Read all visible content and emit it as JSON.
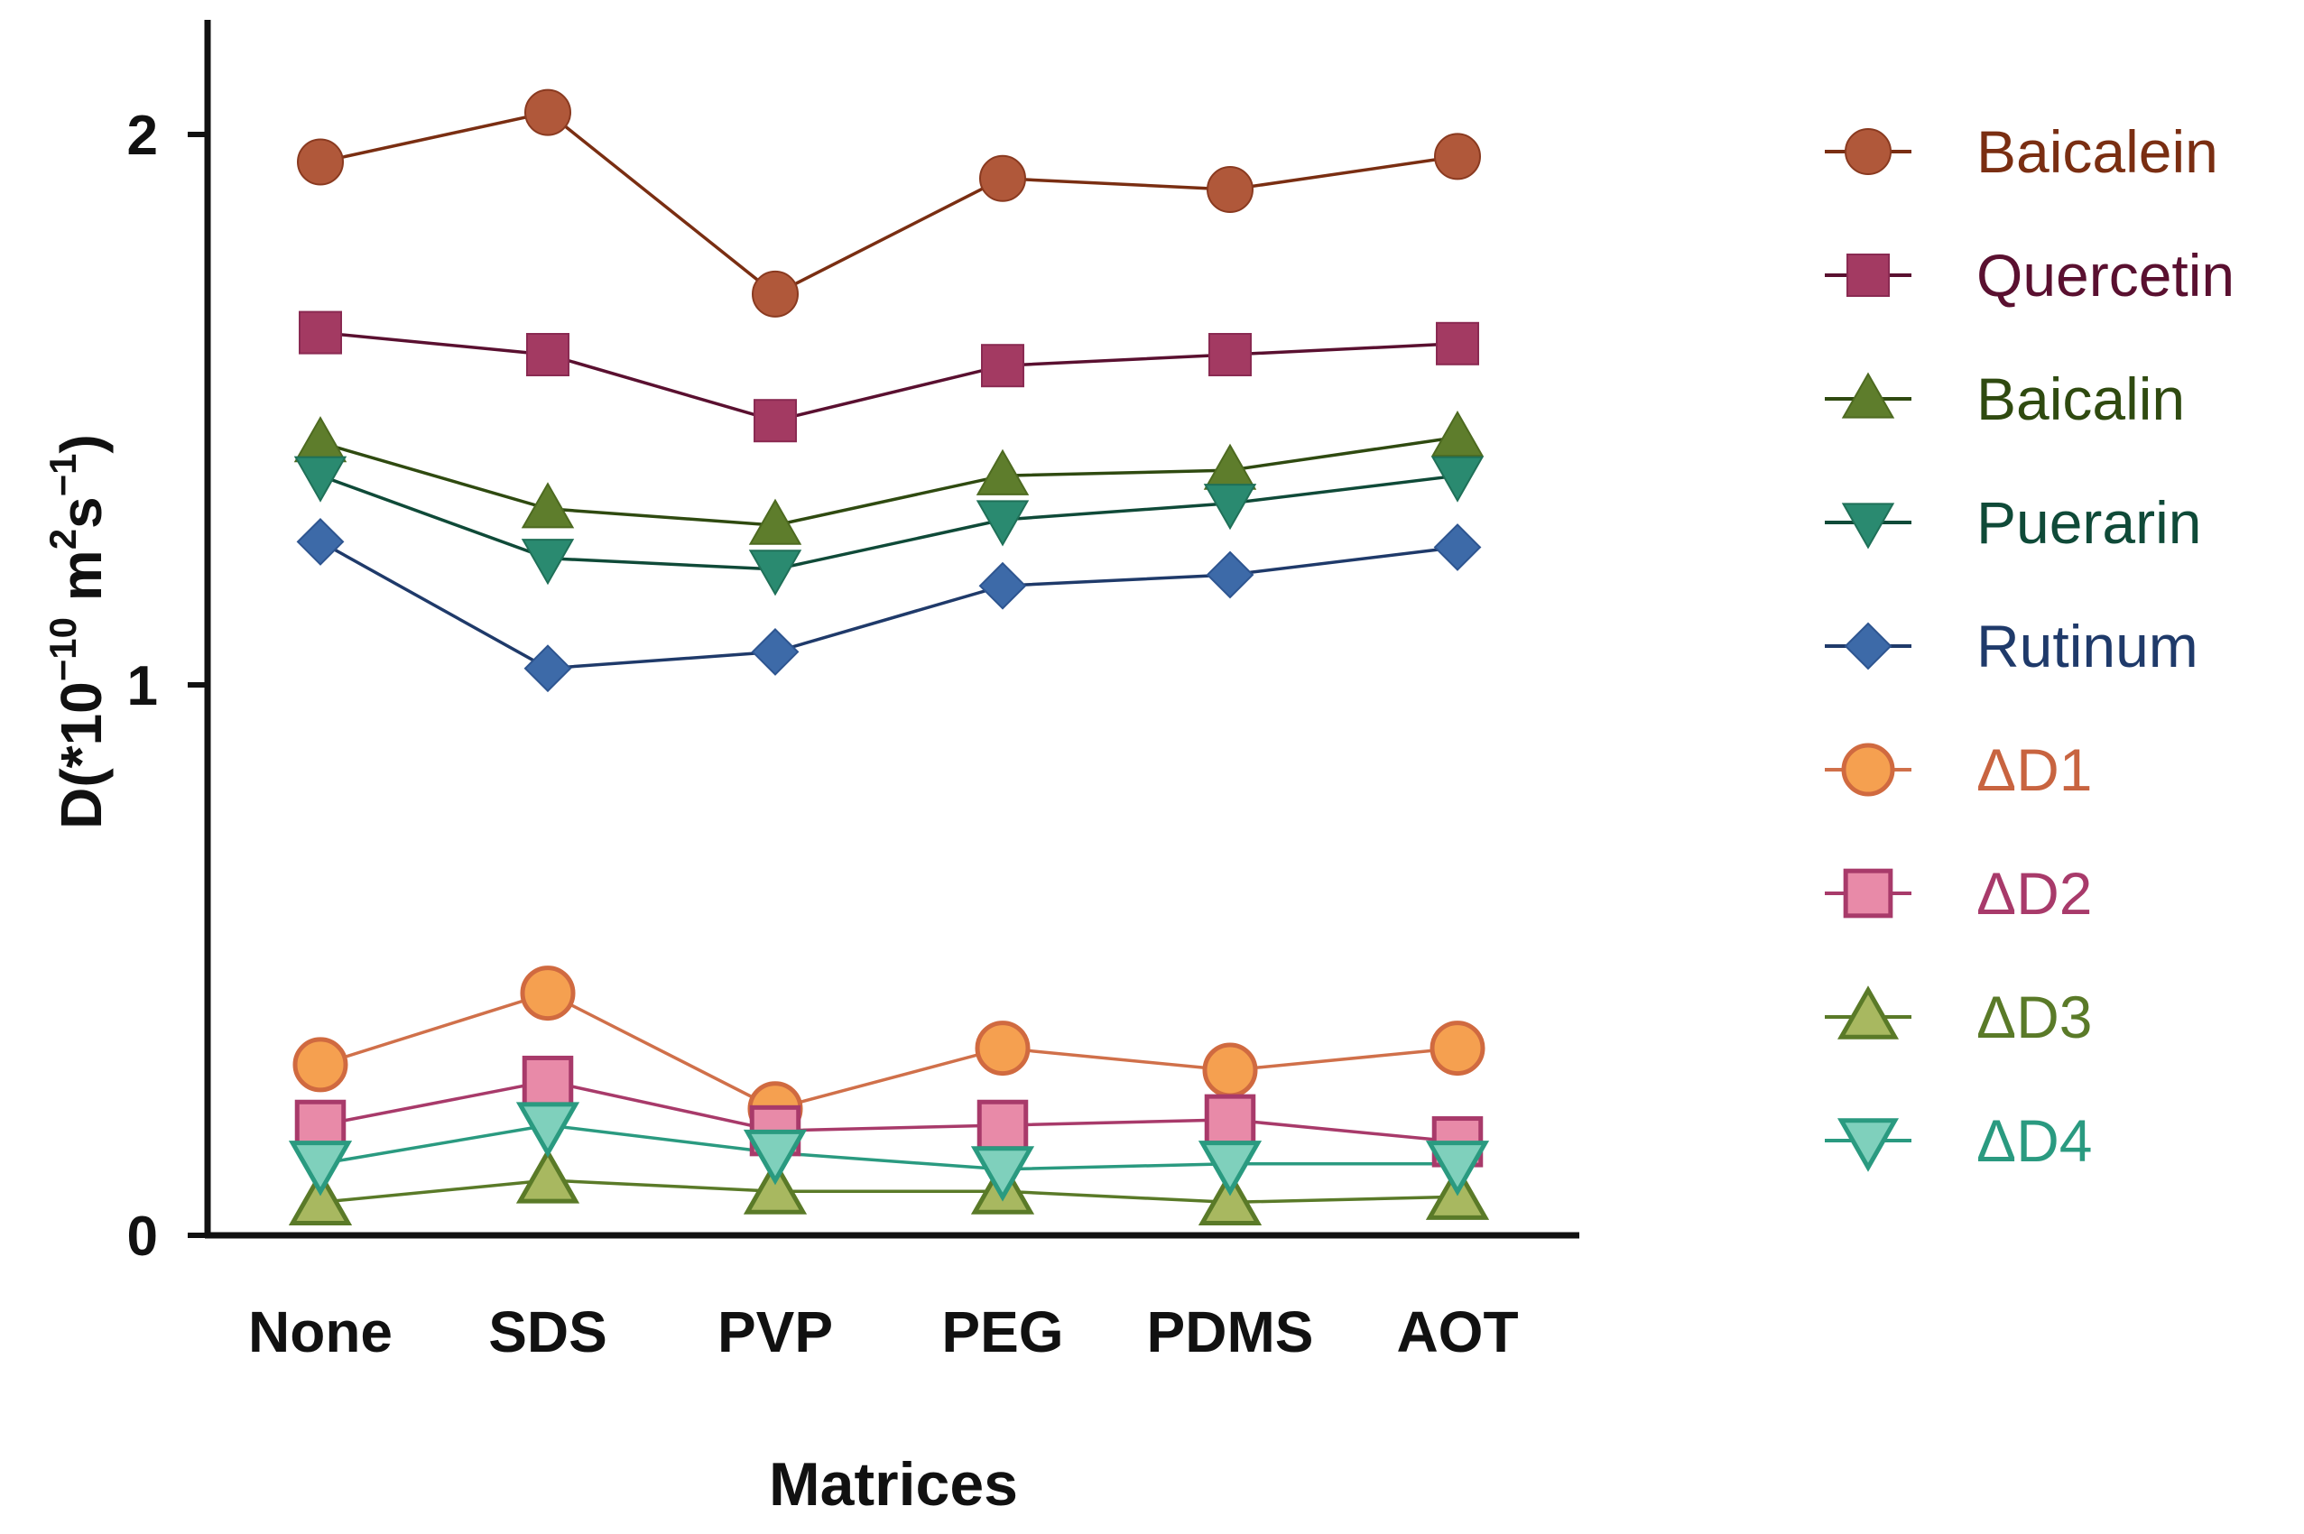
{
  "chart_data": {
    "type": "line",
    "title": "",
    "xlabel": "Matrices",
    "ylabel": {
      "prefix": "D(*10",
      "exp1": "−10",
      "mid": " m",
      "exp2": "2",
      "mid2": "s",
      "exp3": "−1",
      "suffix": ")"
    },
    "categories": [
      "None",
      "SDS",
      "PVP",
      "PEG",
      "PDMS",
      "AOT"
    ],
    "ylim": [
      0,
      2.2
    ],
    "yticks": [
      0,
      1,
      2
    ],
    "ytick_labels": [
      "0",
      "1",
      "2"
    ],
    "legend_position": "right",
    "series": [
      {
        "name": "Baicalein",
        "marker": "circle",
        "filled": true,
        "line_color": "#7a2e12",
        "marker_color": "#b0583a",
        "marker_stroke": "#8a3a20",
        "label_color": "#7a2e12",
        "values": [
          1.95,
          2.04,
          1.71,
          1.92,
          1.9,
          1.96
        ]
      },
      {
        "name": "Quercetin",
        "marker": "square",
        "filled": true,
        "line_color": "#5a1030",
        "marker_color": "#a33a62",
        "marker_stroke": "#8a2a52",
        "label_color": "#5a1030",
        "values": [
          1.64,
          1.6,
          1.48,
          1.58,
          1.6,
          1.62
        ]
      },
      {
        "name": "Baicalin",
        "marker": "triangle-up",
        "filled": true,
        "line_color": "#2f4a10",
        "marker_color": "#5e7d2c",
        "marker_stroke": "#4d6a20",
        "label_color": "#2f4a10",
        "values": [
          1.44,
          1.32,
          1.29,
          1.38,
          1.39,
          1.45
        ]
      },
      {
        "name": "Puerarin",
        "marker": "triangle-down",
        "filled": true,
        "line_color": "#0f4a38",
        "marker_color": "#2a8a70",
        "marker_stroke": "#1f7058",
        "label_color": "#0f4a38",
        "values": [
          1.38,
          1.23,
          1.21,
          1.3,
          1.33,
          1.38
        ]
      },
      {
        "name": "Rutinum",
        "marker": "diamond",
        "filled": true,
        "line_color": "#1f3a6a",
        "marker_color": "#3d6aa8",
        "marker_stroke": "#2e5590",
        "label_color": "#1f3a6a",
        "values": [
          1.26,
          1.03,
          1.06,
          1.18,
          1.2,
          1.25
        ]
      },
      {
        "name": "ΔD1",
        "marker": "circle",
        "filled": true,
        "line_color": "#d0704a",
        "marker_color": "#f5a050",
        "marker_stroke": "#d06a40",
        "label_color": "#c86440",
        "values": [
          0.31,
          0.44,
          0.23,
          0.34,
          0.3,
          0.34
        ]
      },
      {
        "name": "ΔD2",
        "marker": "square",
        "filled": true,
        "line_color": "#a83a6a",
        "marker_color": "#e88aa8",
        "marker_stroke": "#a83a6a",
        "label_color": "#a83a6a",
        "values": [
          0.2,
          0.28,
          0.19,
          0.2,
          0.21,
          0.17
        ]
      },
      {
        "name": "ΔD3",
        "marker": "triangle-up",
        "filled": true,
        "line_color": "#5a7a28",
        "marker_color": "#a8b860",
        "marker_stroke": "#5a7a28",
        "label_color": "#5a7a28",
        "values": [
          0.06,
          0.1,
          0.08,
          0.08,
          0.06,
          0.07
        ]
      },
      {
        "name": "ΔD4",
        "marker": "triangle-down",
        "filled": true,
        "line_color": "#2a9a80",
        "marker_color": "#7fd0bc",
        "marker_stroke": "#2a9a80",
        "label_color": "#2a9a80",
        "values": [
          0.13,
          0.2,
          0.15,
          0.12,
          0.13,
          0.13
        ]
      }
    ]
  }
}
